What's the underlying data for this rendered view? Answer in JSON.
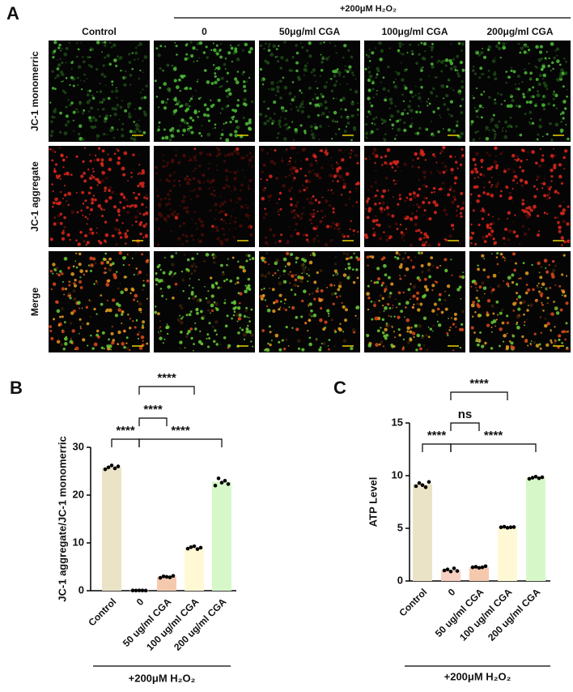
{
  "panel_a": {
    "label": "A",
    "group_label": "+200μM H₂O₂",
    "columns": [
      "Control",
      "0",
      "50μg/ml CGA",
      "100μg/ml CGA",
      "200μg/ml CGA"
    ],
    "rows": [
      "JC-1 monomerric",
      "JC-1 aggregate",
      "Merge"
    ]
  },
  "chart_data": [
    {
      "type": "bar",
      "panel_label": "B",
      "ylabel": "JC-1 aggregate/JC-1 monomerric",
      "categories": [
        "Control",
        "0",
        "50 ug/ml CGA",
        "100 ug/ml CGA",
        "200 ug/ml CGA"
      ],
      "values": [
        25.8,
        0.05,
        2.9,
        9.0,
        22.8
      ],
      "points": [
        [
          25.4,
          25.8,
          26.2,
          25.6,
          26.0
        ],
        [
          0.05,
          0.04,
          0.06,
          0.05,
          0.03
        ],
        [
          2.7,
          3.0,
          2.9,
          2.8,
          3.1
        ],
        [
          8.8,
          9.1,
          9.3,
          8.7,
          9.0
        ],
        [
          22.0,
          23.5,
          22.6,
          23.0,
          22.3
        ]
      ],
      "colors": [
        "#ebe3c6",
        "#f7cfc0",
        "#f5c9ae",
        "#fff8d4",
        "#d6f8c8"
      ],
      "ylim": [
        0,
        30
      ],
      "yticks": [
        0,
        10,
        20,
        30
      ],
      "group_label": "+200μM H₂O₂",
      "annotations": [
        "****",
        "****",
        "****",
        "****"
      ]
    },
    {
      "type": "bar",
      "panel_label": "C",
      "ylabel": "ATP Level",
      "categories": [
        "Control",
        "0",
        "50 ug/ml CGA",
        "100 ug/ml CGA",
        "200 ug/ml CGA"
      ],
      "values": [
        9.2,
        1.0,
        1.3,
        5.1,
        9.8
      ],
      "points": [
        [
          9.0,
          9.3,
          9.1,
          8.9,
          9.4
        ],
        [
          1.0,
          1.1,
          0.9,
          1.2,
          0.95
        ],
        [
          1.3,
          1.35,
          1.25,
          1.3,
          1.4
        ],
        [
          5.1,
          5.15,
          5.05,
          5.1,
          5.12
        ],
        [
          9.7,
          9.8,
          9.9,
          9.75,
          9.85
        ]
      ],
      "colors": [
        "#ebe3c6",
        "#f7cfc0",
        "#f5c9ae",
        "#fff8d4",
        "#d6f8c8"
      ],
      "ylim": [
        0,
        15
      ],
      "yticks": [
        0,
        5,
        10,
        15
      ],
      "group_label": "+200μM H₂O₂",
      "annotations": [
        "****",
        "ns",
        "****",
        "****"
      ]
    }
  ]
}
